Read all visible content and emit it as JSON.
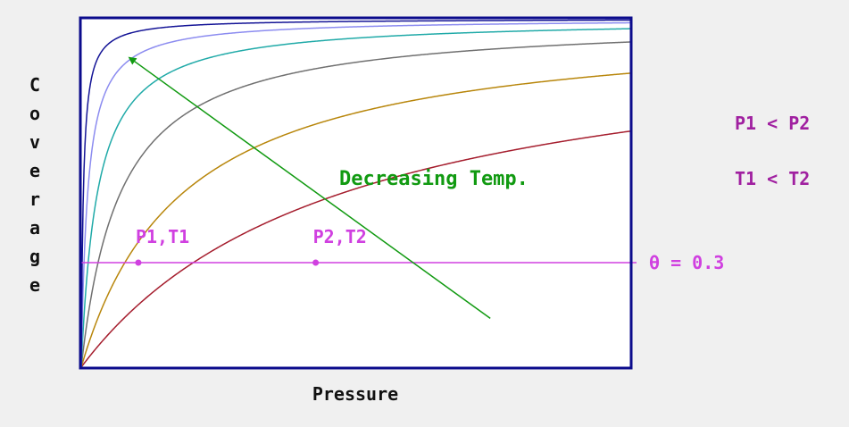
{
  "chart_data": {
    "type": "line",
    "title": "",
    "xlabel": "Pressure",
    "ylabel": "Coverage",
    "xlim": [
      0,
      1
    ],
    "ylim": [
      0,
      1
    ],
    "grid": false,
    "series": [
      {
        "K": 2.1,
        "color": "#a51d2d"
      },
      {
        "K": 5.4,
        "color": "#b8860b"
      },
      {
        "K": 14,
        "color": "#707070"
      },
      {
        "K": 34,
        "color": "#20aaa8"
      },
      {
        "K": 85,
        "color": "#8c8cf0"
      },
      {
        "K": 260,
        "color": "#141496"
      }
    ],
    "reference_line": {
      "y": 0.3,
      "label": "θ = 0.3",
      "color": "#d040e0"
    },
    "points": [
      {
        "label": "P1,T1",
        "x": 0.104,
        "y": 0.3
      },
      {
        "label": "P2,T2",
        "x": 0.427,
        "y": 0.3
      }
    ],
    "annotation": {
      "text": "Decreasing Temp.",
      "color": "#119a11",
      "from": {
        "x": 0.745,
        "y": 0.14
      },
      "to": {
        "x": 0.095,
        "y": 0.88
      }
    },
    "side_notes": [
      "P1 < P2",
      "T1 < T2"
    ]
  },
  "colors": {
    "plot_border": "#0b0b8c",
    "plot_background": "#ffffff",
    "page_background": "#f0f0f0",
    "side_note_color": "#a020a0",
    "axis_label_color": "#111111"
  }
}
